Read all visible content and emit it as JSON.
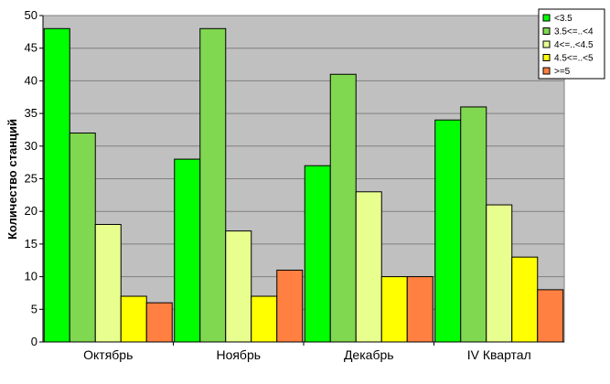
{
  "chart_data": {
    "type": "bar",
    "title": "",
    "xlabel": "",
    "ylabel": "Количество станций",
    "ylim": [
      0,
      50
    ],
    "yticks": [
      0,
      5,
      10,
      15,
      20,
      25,
      30,
      35,
      40,
      45,
      50
    ],
    "grid": true,
    "legend_position": "top-right",
    "plot_background": "#c0c0c0",
    "categories": [
      "Октябрь",
      "Ноябрь",
      "Декабрь",
      "IV Квартал"
    ],
    "series": [
      {
        "name": "<3.5",
        "color": "#00ff00",
        "values": [
          48,
          28,
          27,
          34
        ]
      },
      {
        "name": "3.5<=..<4",
        "color": "#80d850",
        "values": [
          32,
          48,
          41,
          36
        ]
      },
      {
        "name": "4<=..<4.5",
        "color": "#e8ff90",
        "values": [
          18,
          17,
          23,
          21
        ]
      },
      {
        "name": "4.5<=..<5",
        "color": "#ffff00",
        "values": [
          7,
          7,
          10,
          13
        ]
      },
      {
        "name": ">=5",
        "color": "#ff8040",
        "values": [
          6,
          11,
          10,
          8
        ]
      }
    ]
  }
}
